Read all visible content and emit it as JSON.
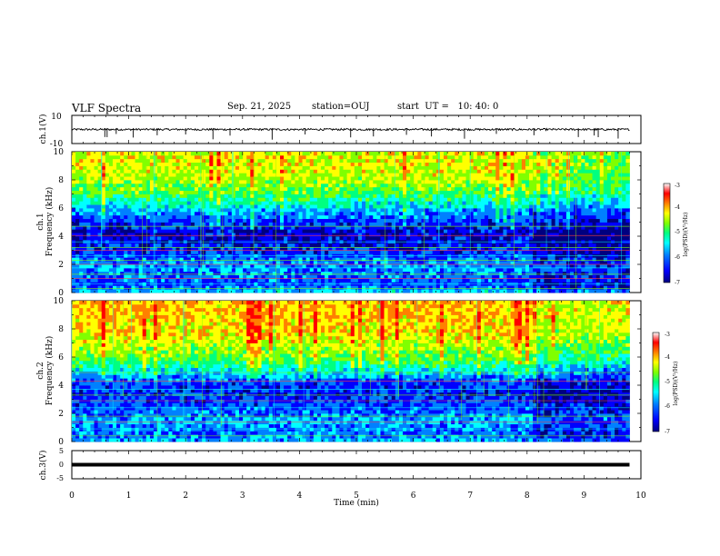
{
  "header": {
    "title": "VLF Spectra",
    "date": "Sep. 21, 2025",
    "station": "station=OUJ",
    "start_ut": "start  UT =   10: 40: 0"
  },
  "colorscale": [
    "#000080",
    "#0000ff",
    "#0080ff",
    "#00ffff",
    "#00ff80",
    "#80ff00",
    "#ffff00",
    "#ff8000",
    "#ff0000",
    "#ffffff"
  ],
  "chart_data": [
    {
      "type": "line",
      "panel": "ch1-waveform",
      "ylabel": "ch.1(V)",
      "ylim": [
        -10,
        10
      ],
      "yticks": [
        "10",
        "-10"
      ],
      "xlim": [
        0,
        10
      ],
      "baseline": 0,
      "spike_times": [
        0.58,
        0.62,
        0.78,
        1.08,
        1.5,
        2.0,
        2.48,
        2.78,
        3.52,
        4.1,
        4.9,
        5.3,
        5.88,
        6.32,
        6.9,
        7.46,
        8.12,
        8.9,
        9.18,
        9.25,
        9.6
      ]
    },
    {
      "type": "heatmap",
      "panel": "ch1-spectrogram",
      "ylabel_top": "ch.1",
      "ylabel": "Frequency (kHz)",
      "xlim": [
        0,
        9.8
      ],
      "ylim": [
        0,
        10
      ],
      "yticks": [
        "0",
        "2",
        "4",
        "6",
        "8",
        "10"
      ],
      "colorbar": {
        "label": "log(PSD)(V²/Hz)",
        "range": [
          -7,
          -3
        ],
        "ticks": [
          "-3",
          "-4",
          "-5",
          "-6",
          "-7"
        ]
      },
      "band_profile": {
        "freq_khz": [
          0,
          0.5,
          1,
          1.5,
          2,
          2.5,
          3,
          3.5,
          4,
          4.5,
          5,
          5.5,
          6,
          6.5,
          7,
          7.5,
          8,
          8.5,
          9,
          9.5,
          10
        ],
        "log_psd": [
          -5.5,
          -6.1,
          -6.0,
          -5.9,
          -5.8,
          -6.0,
          -6.3,
          -6.4,
          -6.5,
          -6.4,
          -6.2,
          -5.9,
          -5.6,
          -5.2,
          -4.8,
          -4.6,
          -4.4,
          -4.3,
          -4.2,
          -4.2,
          -4.2
        ]
      },
      "quiet_after_min": 8.1,
      "lines_khz": [
        0.3,
        0.6,
        1.0,
        1.3,
        1.75,
        2.0,
        2.3,
        2.6,
        3.0,
        3.2,
        3.6,
        4.05,
        4.7
      ]
    },
    {
      "type": "heatmap",
      "panel": "ch2-spectrogram",
      "ylabel_top": "ch.2",
      "ylabel": "Frequency (kHz)",
      "xlim": [
        0,
        9.8
      ],
      "ylim": [
        0,
        10
      ],
      "yticks": [
        "0",
        "2",
        "4",
        "6",
        "8",
        "10"
      ],
      "colorbar": {
        "label": "log(PSD)(V²/Hz)",
        "range": [
          -7,
          -3
        ],
        "ticks": [
          "-3",
          "-4",
          "-5",
          "-6",
          "-7"
        ]
      },
      "band_profile": {
        "freq_khz": [
          0,
          0.5,
          1,
          1.5,
          2,
          2.5,
          3,
          3.5,
          4,
          4.5,
          5,
          5.5,
          6,
          6.5,
          7,
          7.5,
          8,
          8.5,
          9,
          9.5,
          10
        ],
        "log_psd": [
          -5.6,
          -6.0,
          -5.9,
          -5.7,
          -5.9,
          -6.1,
          -6.2,
          -6.3,
          -6.2,
          -5.9,
          -5.5,
          -5.0,
          -4.7,
          -4.5,
          -4.3,
          -4.1,
          -4.0,
          -4.0,
          -3.9,
          -3.9,
          -3.9
        ]
      },
      "quiet_after_min": 8.1,
      "lines_khz": [
        0.4,
        0.9,
        1.4,
        1.8,
        2.4,
        2.9,
        3.3,
        3.7,
        4.3,
        4.9
      ]
    },
    {
      "type": "line",
      "panel": "ch3-waveform",
      "ylabel": "ch.3(V)",
      "ylim": [
        -5,
        5
      ],
      "yticks": [
        "5",
        "0",
        "-5"
      ],
      "xlim": [
        0,
        10
      ],
      "x": [
        0,
        9.8
      ],
      "y": [
        0,
        0
      ]
    }
  ],
  "xaxis": {
    "label": "Time (min)",
    "range": [
      0,
      10
    ],
    "ticks": [
      "0",
      "1",
      "2",
      "3",
      "4",
      "5",
      "6",
      "7",
      "8",
      "9",
      "10"
    ]
  }
}
